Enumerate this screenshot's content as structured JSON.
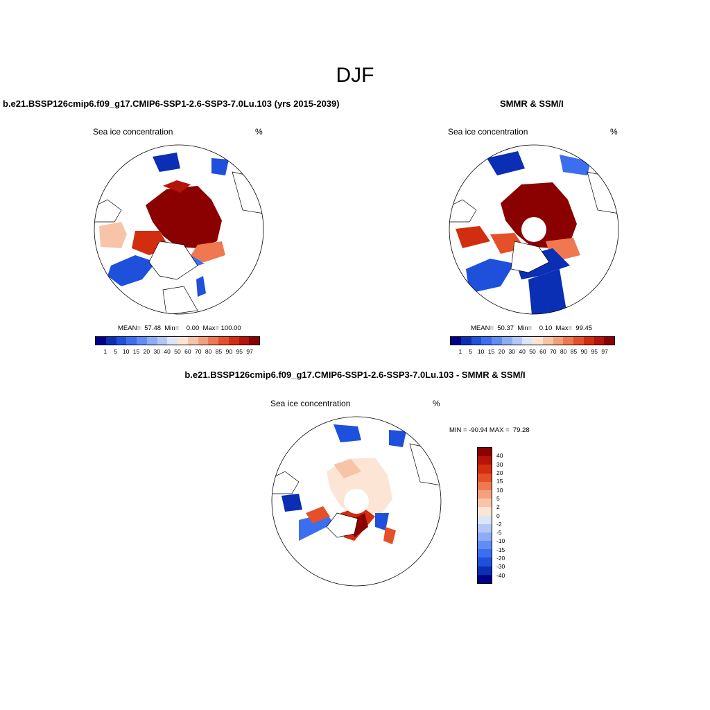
{
  "season": "DJF",
  "panels": [
    {
      "title": "b.e21.BSSP126cmip6.f09_g17.CMIP6-SSP1-2.6-SSP3-7.0Lu.103 (yrs 2015-2039)",
      "variable": "Sea ice concentration",
      "units": "%",
      "stats": "MEAN=  57.48  Min=    0.00  Max= 100.00"
    },
    {
      "title": "SMMR & SSM/I",
      "variable": "Sea ice concentration",
      "units": "%",
      "stats": "MEAN=  50.37  Min=    0.10  Max=  99.45"
    },
    {
      "title": "b.e21.BSSP126cmip6.f09_g17.CMIP6-SSP1-2.6-SSP3-7.0Lu.103 - SMMR & SSM/I",
      "variable": "Sea ice concentration",
      "units": "%",
      "stats": "MIN = -90.94 MAX =  79.28"
    }
  ],
  "colorbar_levels": [
    "1",
    "5",
    "10",
    "15",
    "20",
    "30",
    "40",
    "50",
    "60",
    "70",
    "80",
    "85",
    "90",
    "95",
    "97"
  ],
  "colorbar_colors": [
    "#00008b",
    "#0a2fb4",
    "#1e50dc",
    "#3c6ef0",
    "#5f8cf5",
    "#8cacf5",
    "#b4c8f5",
    "#dce6f8",
    "#fde5d5",
    "#f8c4a8",
    "#f4a07d",
    "#f07850",
    "#e65028",
    "#d22d0f",
    "#b4140a",
    "#8b0000"
  ],
  "diff_levels": [
    "40",
    "30",
    "20",
    "15",
    "10",
    "5",
    "2",
    "0",
    "-2",
    "-5",
    "-10",
    "-15",
    "-20",
    "-30",
    "-40"
  ],
  "diff_colors": [
    "#8b0000",
    "#b4140a",
    "#d22d0f",
    "#e65028",
    "#f07850",
    "#f4a07d",
    "#f8c4a8",
    "#fde5d5",
    "#dce6f8",
    "#b4c8f5",
    "#8cacf5",
    "#5f8cf5",
    "#3c6ef0",
    "#1e50dc",
    "#0a2fb4",
    "#00008b"
  ]
}
